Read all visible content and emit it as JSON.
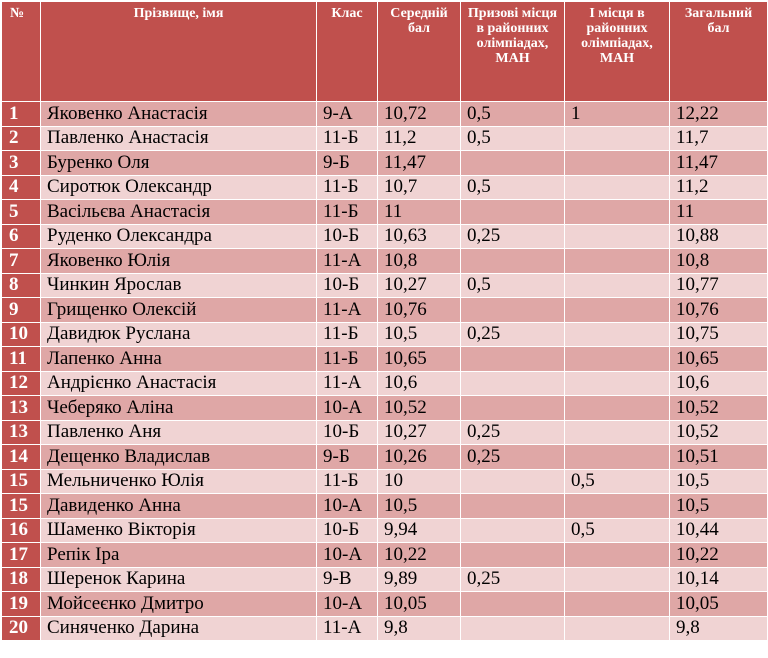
{
  "table": {
    "headers": {
      "num": "№",
      "name": "Прізвище, імя",
      "class": "Клас",
      "avg": "Середній бал",
      "prize": "Призові місця в районних олімпіадах, МАН",
      "first": "І місця в районних олімпіадах, МАН",
      "total": "Загальний бал"
    },
    "rows": [
      {
        "num": "1",
        "name": "Яковенко Анастасія",
        "class": "9-А",
        "avg": "10,72",
        "prize": "0,5",
        "first": "1",
        "total": "12,22"
      },
      {
        "num": "2",
        "name": "Павленко Анастасія",
        "class": "11-Б",
        "avg": "11,2",
        "prize": "0,5",
        "first": "",
        "total": "11,7"
      },
      {
        "num": "3",
        "name": "Буренко Оля",
        "class": "9-Б",
        "avg": "11,47",
        "prize": "",
        "first": "",
        "total": "11,47"
      },
      {
        "num": "4",
        "name": "Сиротюк Олександр",
        "class": "11-Б",
        "avg": "10,7",
        "prize": "0,5",
        "first": "",
        "total": "11,2"
      },
      {
        "num": "5",
        "name": "Васільєва Анастасія",
        "class": "11-Б",
        "avg": "11",
        "prize": "",
        "first": "",
        "total": "11"
      },
      {
        "num": "6",
        "name": "Руденко Олександра",
        "class": "10-Б",
        "avg": "10,63",
        "prize": "0,25",
        "first": "",
        "total": "10,88"
      },
      {
        "num": "7",
        "name": "Яковенко Юлія",
        "class": "11-А",
        "avg": "10,8",
        "prize": "",
        "first": "",
        "total": "10,8"
      },
      {
        "num": "8",
        "name": "Чинкин Ярослав",
        "class": "10-Б",
        "avg": "10,27",
        "prize": "0,5",
        "first": "",
        "total": "10,77"
      },
      {
        "num": "9",
        "name": "Грищенко Олексій",
        "class": "11-А",
        "avg": "10,76",
        "prize": "",
        "first": "",
        "total": "10,76"
      },
      {
        "num": "10",
        "name": "Давидюк Руслана",
        "class": "11-Б",
        "avg": "10,5",
        "prize": "0,25",
        "first": "",
        "total": "10,75"
      },
      {
        "num": "11",
        "name": "Лапенко Анна",
        "class": "11-Б",
        "avg": "10,65",
        "prize": "",
        "first": "",
        "total": "10,65"
      },
      {
        "num": "12",
        "name": "Андрієнко Анастасія",
        "class": "11-А",
        "avg": "10,6",
        "prize": "",
        "first": "",
        "total": "10,6"
      },
      {
        "num": "13",
        "name": "Чеберяко Аліна",
        "class": "10-А",
        "avg": "10,52",
        "prize": "",
        "first": "",
        "total": "10,52"
      },
      {
        "num": "13",
        "name": "Павленко Аня",
        "class": "10-Б",
        "avg": "10,27",
        "prize": "0,25",
        "first": "",
        "total": "10,52"
      },
      {
        "num": "14",
        "name": "Дещенко Владислав",
        "class": "9-Б",
        "avg": "10,26",
        "prize": "0,25",
        "first": "",
        "total": "10,51"
      },
      {
        "num": "15",
        "name": "Мельниченко Юлія",
        "class": "11-Б",
        "avg": "10",
        "prize": "",
        "first": "0,5",
        "total": "10,5"
      },
      {
        "num": "15",
        "name": "Давиденко Анна",
        "class": "10-А",
        "avg": "10,5",
        "prize": "",
        "first": "",
        "total": "10,5"
      },
      {
        "num": "16",
        "name": "Шаменко Вікторія",
        "class": "10-Б",
        "avg": "9,94",
        "prize": "",
        "first": "0,5",
        "total": "10,44"
      },
      {
        "num": "17",
        "name": "Репік Іра",
        "class": "10-А",
        "avg": "10,22",
        "prize": "",
        "first": "",
        "total": "10,22"
      },
      {
        "num": "18",
        "name": "Шеренок Карина",
        "class": "9-В",
        "avg": "9,89",
        "prize": "0,25",
        "first": "",
        "total": "10,14"
      },
      {
        "num": "19",
        "name": "Мойсеєнко Дмитро",
        "class": "10-А",
        "avg": "10,05",
        "prize": "",
        "first": "",
        "total": "10,05"
      },
      {
        "num": "20",
        "name": "Синяченко Дарина",
        "class": "11-А",
        "avg": "9,8",
        "prize": "",
        "first": "",
        "total": "9,8"
      }
    ]
  },
  "colors": {
    "header": "#c0504d",
    "row_dark": "#dfa7a6",
    "row_light": "#f0d3d3"
  }
}
